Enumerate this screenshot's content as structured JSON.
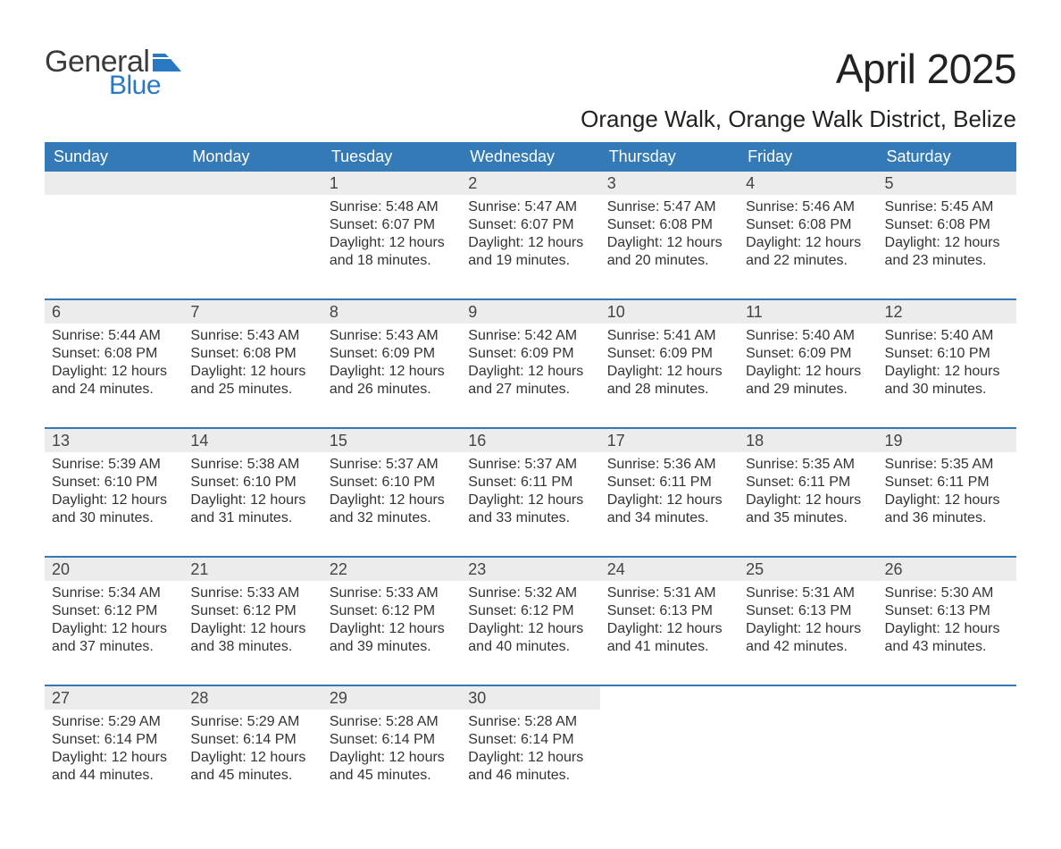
{
  "brand": {
    "line1": "General",
    "line2": "Blue",
    "line1_color": "#3b3b3b",
    "line2_color": "#2b78c2",
    "icon_color": "#2b78c2"
  },
  "header": {
    "month_title": "April 2025",
    "location": "Orange Walk, Orange Walk District, Belize"
  },
  "style": {
    "header_bg": "#337ab7",
    "header_text_color": "#ffffff",
    "daynum_bg": "#ececec",
    "daynum_color": "#444444",
    "body_text_color": "#333333",
    "week_border_color": "#337ab7",
    "page_bg": "#ffffff",
    "title_fontsize": 46,
    "location_fontsize": 26,
    "dow_fontsize": 18,
    "daynum_fontsize": 18,
    "body_fontsize": 16
  },
  "days_of_week": [
    "Sunday",
    "Monday",
    "Tuesday",
    "Wednesday",
    "Thursday",
    "Friday",
    "Saturday"
  ],
  "labels": {
    "sunrise": "Sunrise:",
    "sunset": "Sunset:",
    "daylight": "Daylight:"
  },
  "weeks": [
    [
      {
        "empty": true
      },
      {
        "empty": true
      },
      {
        "day": "1",
        "sunrise": "5:48 AM",
        "sunset": "6:07 PM",
        "daylight": "12 hours and 18 minutes."
      },
      {
        "day": "2",
        "sunrise": "5:47 AM",
        "sunset": "6:07 PM",
        "daylight": "12 hours and 19 minutes."
      },
      {
        "day": "3",
        "sunrise": "5:47 AM",
        "sunset": "6:08 PM",
        "daylight": "12 hours and 20 minutes."
      },
      {
        "day": "4",
        "sunrise": "5:46 AM",
        "sunset": "6:08 PM",
        "daylight": "12 hours and 22 minutes."
      },
      {
        "day": "5",
        "sunrise": "5:45 AM",
        "sunset": "6:08 PM",
        "daylight": "12 hours and 23 minutes."
      }
    ],
    [
      {
        "day": "6",
        "sunrise": "5:44 AM",
        "sunset": "6:08 PM",
        "daylight": "12 hours and 24 minutes."
      },
      {
        "day": "7",
        "sunrise": "5:43 AM",
        "sunset": "6:08 PM",
        "daylight": "12 hours and 25 minutes."
      },
      {
        "day": "8",
        "sunrise": "5:43 AM",
        "sunset": "6:09 PM",
        "daylight": "12 hours and 26 minutes."
      },
      {
        "day": "9",
        "sunrise": "5:42 AM",
        "sunset": "6:09 PM",
        "daylight": "12 hours and 27 minutes."
      },
      {
        "day": "10",
        "sunrise": "5:41 AM",
        "sunset": "6:09 PM",
        "daylight": "12 hours and 28 minutes."
      },
      {
        "day": "11",
        "sunrise": "5:40 AM",
        "sunset": "6:09 PM",
        "daylight": "12 hours and 29 minutes."
      },
      {
        "day": "12",
        "sunrise": "5:40 AM",
        "sunset": "6:10 PM",
        "daylight": "12 hours and 30 minutes."
      }
    ],
    [
      {
        "day": "13",
        "sunrise": "5:39 AM",
        "sunset": "6:10 PM",
        "daylight": "12 hours and 30 minutes."
      },
      {
        "day": "14",
        "sunrise": "5:38 AM",
        "sunset": "6:10 PM",
        "daylight": "12 hours and 31 minutes."
      },
      {
        "day": "15",
        "sunrise": "5:37 AM",
        "sunset": "6:10 PM",
        "daylight": "12 hours and 32 minutes."
      },
      {
        "day": "16",
        "sunrise": "5:37 AM",
        "sunset": "6:11 PM",
        "daylight": "12 hours and 33 minutes."
      },
      {
        "day": "17",
        "sunrise": "5:36 AM",
        "sunset": "6:11 PM",
        "daylight": "12 hours and 34 minutes."
      },
      {
        "day": "18",
        "sunrise": "5:35 AM",
        "sunset": "6:11 PM",
        "daylight": "12 hours and 35 minutes."
      },
      {
        "day": "19",
        "sunrise": "5:35 AM",
        "sunset": "6:11 PM",
        "daylight": "12 hours and 36 minutes."
      }
    ],
    [
      {
        "day": "20",
        "sunrise": "5:34 AM",
        "sunset": "6:12 PM",
        "daylight": "12 hours and 37 minutes."
      },
      {
        "day": "21",
        "sunrise": "5:33 AM",
        "sunset": "6:12 PM",
        "daylight": "12 hours and 38 minutes."
      },
      {
        "day": "22",
        "sunrise": "5:33 AM",
        "sunset": "6:12 PM",
        "daylight": "12 hours and 39 minutes."
      },
      {
        "day": "23",
        "sunrise": "5:32 AM",
        "sunset": "6:12 PM",
        "daylight": "12 hours and 40 minutes."
      },
      {
        "day": "24",
        "sunrise": "5:31 AM",
        "sunset": "6:13 PM",
        "daylight": "12 hours and 41 minutes."
      },
      {
        "day": "25",
        "sunrise": "5:31 AM",
        "sunset": "6:13 PM",
        "daylight": "12 hours and 42 minutes."
      },
      {
        "day": "26",
        "sunrise": "5:30 AM",
        "sunset": "6:13 PM",
        "daylight": "12 hours and 43 minutes."
      }
    ],
    [
      {
        "day": "27",
        "sunrise": "5:29 AM",
        "sunset": "6:14 PM",
        "daylight": "12 hours and 44 minutes."
      },
      {
        "day": "28",
        "sunrise": "5:29 AM",
        "sunset": "6:14 PM",
        "daylight": "12 hours and 45 minutes."
      },
      {
        "day": "29",
        "sunrise": "5:28 AM",
        "sunset": "6:14 PM",
        "daylight": "12 hours and 45 minutes."
      },
      {
        "day": "30",
        "sunrise": "5:28 AM",
        "sunset": "6:14 PM",
        "daylight": "12 hours and 46 minutes."
      },
      {
        "empty": true,
        "no_bar": true
      },
      {
        "empty": true,
        "no_bar": true
      },
      {
        "empty": true,
        "no_bar": true
      }
    ]
  ]
}
